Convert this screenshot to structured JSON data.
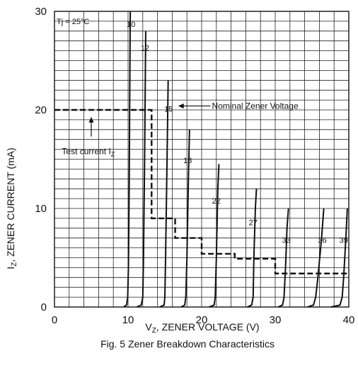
{
  "chart_data": {
    "type": "line",
    "title": "",
    "caption": "Fig. 5  Zener Breakdown Characteristics",
    "annotation_tj": "Tj = 25°C",
    "xlabel": {
      "main": "V",
      "sub": "Z",
      "rest": ", ZENER VOLTAGE (V)"
    },
    "ylabel": {
      "main": "I",
      "sub": "Z",
      "rest": ", ZENER CURRENT (mA)"
    },
    "xlim": [
      0,
      40
    ],
    "ylim": [
      0,
      30
    ],
    "x_ticks": [
      0,
      10,
      20,
      30,
      40
    ],
    "y_ticks": [
      0,
      10,
      20,
      30
    ],
    "grid": true,
    "curves": [
      {
        "name": "10",
        "points": [
          [
            9.4,
            0
          ],
          [
            9.8,
            0.2
          ],
          [
            9.95,
            1
          ],
          [
            10.05,
            4
          ],
          [
            10.15,
            12
          ],
          [
            10.3,
            30
          ]
        ]
      },
      {
        "name": "12",
        "points": [
          [
            11.2,
            0
          ],
          [
            11.8,
            0.2
          ],
          [
            12.0,
            1
          ],
          [
            12.1,
            5
          ],
          [
            12.25,
            15
          ],
          [
            12.4,
            28
          ]
        ]
      },
      {
        "name": "15",
        "points": [
          [
            14.3,
            0
          ],
          [
            14.9,
            0.2
          ],
          [
            15.0,
            1
          ],
          [
            15.1,
            5
          ],
          [
            15.3,
            15
          ],
          [
            15.45,
            23
          ]
        ]
      },
      {
        "name": "18",
        "points": [
          [
            17.2,
            0
          ],
          [
            17.7,
            0.2
          ],
          [
            17.85,
            1
          ],
          [
            18.0,
            5
          ],
          [
            18.2,
            13
          ],
          [
            18.35,
            18
          ]
        ]
      },
      {
        "name": "22",
        "points": [
          [
            21.0,
            0
          ],
          [
            21.7,
            0.2
          ],
          [
            21.85,
            1
          ],
          [
            22.0,
            5
          ],
          [
            22.2,
            12
          ],
          [
            22.35,
            14.5
          ]
        ]
      },
      {
        "name": "27",
        "points": [
          [
            26.2,
            0
          ],
          [
            26.8,
            0.2
          ],
          [
            27.0,
            1
          ],
          [
            27.1,
            5
          ],
          [
            27.3,
            10
          ],
          [
            27.45,
            12
          ]
        ]
      },
      {
        "name": "33",
        "points": [
          [
            30.4,
            0
          ],
          [
            31.0,
            0.2
          ],
          [
            31.2,
            1
          ],
          [
            31.4,
            4
          ],
          [
            31.6,
            8
          ],
          [
            31.8,
            10
          ]
        ]
      },
      {
        "name": "36",
        "points": [
          [
            34.4,
            0
          ],
          [
            35.2,
            0.2
          ],
          [
            35.5,
            1
          ],
          [
            35.8,
            3
          ],
          [
            36.3,
            7
          ],
          [
            36.6,
            10
          ]
        ]
      },
      {
        "name": "39",
        "points": [
          [
            37.6,
            0
          ],
          [
            38.8,
            0.2
          ],
          [
            39.1,
            1
          ],
          [
            39.3,
            3
          ],
          [
            39.6,
            7
          ],
          [
            39.8,
            10
          ]
        ]
      }
    ],
    "label_positions": [
      {
        "name": "10",
        "x": 10.4,
        "y": 28.7
      },
      {
        "name": "12",
        "x": 12.3,
        "y": 26.3
      },
      {
        "name": "15",
        "x": 15.5,
        "y": 20.1
      },
      {
        "name": "18",
        "x": 18.1,
        "y": 14.9
      },
      {
        "name": "22",
        "x": 22.0,
        "y": 10.8
      },
      {
        "name": "27",
        "x": 27.0,
        "y": 8.6
      },
      {
        "name": "33",
        "x": 31.5,
        "y": 6.8
      },
      {
        "name": "36",
        "x": 36.4,
        "y": 6.8
      },
      {
        "name": "39",
        "x": 39.3,
        "y": 6.8
      }
    ],
    "test_current": [
      [
        0,
        20
      ],
      [
        13.2,
        20
      ],
      [
        13.2,
        9
      ],
      [
        16.4,
        9
      ],
      [
        16.4,
        7
      ],
      [
        20,
        7
      ],
      [
        20,
        5.4
      ],
      [
        24.5,
        5.4
      ],
      [
        24.5,
        4.9
      ],
      [
        30,
        4.9
      ],
      [
        30,
        3.4
      ],
      [
        40,
        3.4
      ]
    ],
    "nominal_label": "Nominal Zener Voltage",
    "nominal_arrow": {
      "from": [
        21.2,
        20.4
      ],
      "to": [
        16.8,
        20.4
      ],
      "label_x": 21.4,
      "label_y": 20.4
    },
    "test_label": {
      "main": "Test current I",
      "sub": "Z",
      "x": 1.0,
      "y": 15.8
    },
    "test_arrow": {
      "from": [
        5.0,
        17.3
      ],
      "to": [
        5.0,
        19.3
      ]
    }
  }
}
